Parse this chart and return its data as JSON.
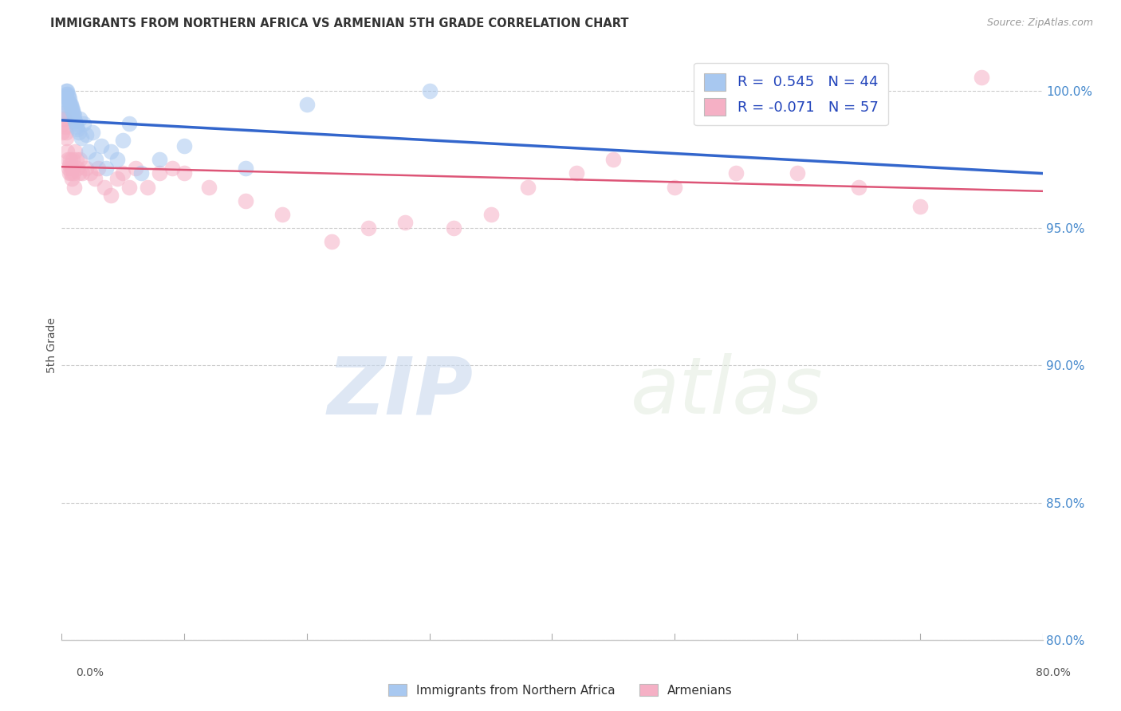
{
  "title": "IMMIGRANTS FROM NORTHERN AFRICA VS ARMENIAN 5TH GRADE CORRELATION CHART",
  "source": "Source: ZipAtlas.com",
  "ylabel": "5th Grade",
  "x_min": 0.0,
  "x_max": 80.0,
  "y_min": 80.0,
  "y_max": 101.5,
  "legend_blue_R": "R =  0.545",
  "legend_blue_N": "N = 44",
  "legend_pink_R": "R = -0.071",
  "legend_pink_N": "N = 57",
  "blue_color": "#a8c8f0",
  "pink_color": "#f5b0c5",
  "blue_line_color": "#3366cc",
  "pink_line_color": "#dd5577",
  "legend_text_color": "#2244bb",
  "blue_scatter_x": [
    0.1,
    0.15,
    0.2,
    0.25,
    0.3,
    0.35,
    0.4,
    0.45,
    0.5,
    0.55,
    0.6,
    0.65,
    0.7,
    0.75,
    0.8,
    0.85,
    0.9,
    0.95,
    1.0,
    1.05,
    1.1,
    1.15,
    1.2,
    1.3,
    1.4,
    1.5,
    1.6,
    1.8,
    2.0,
    2.2,
    2.5,
    2.8,
    3.2,
    3.6,
    4.0,
    4.5,
    5.0,
    5.5,
    6.5,
    8.0,
    10.0,
    15.0,
    20.0,
    30.0
  ],
  "blue_scatter_y": [
    99.2,
    99.5,
    99.6,
    99.7,
    99.8,
    99.9,
    100.0,
    100.0,
    99.9,
    99.8,
    99.7,
    99.6,
    99.5,
    99.5,
    99.4,
    99.3,
    99.3,
    99.2,
    99.1,
    99.0,
    98.9,
    98.8,
    98.7,
    98.6,
    98.5,
    99.0,
    98.3,
    98.8,
    98.4,
    97.8,
    98.5,
    97.5,
    98.0,
    97.2,
    97.8,
    97.5,
    98.2,
    98.8,
    97.0,
    97.5,
    98.0,
    97.2,
    99.5,
    100.0
  ],
  "pink_scatter_x": [
    0.05,
    0.1,
    0.15,
    0.2,
    0.25,
    0.3,
    0.35,
    0.4,
    0.45,
    0.5,
    0.55,
    0.6,
    0.65,
    0.7,
    0.75,
    0.8,
    0.85,
    0.9,
    0.95,
    1.0,
    1.1,
    1.2,
    1.3,
    1.4,
    1.5,
    1.7,
    2.0,
    2.3,
    2.7,
    3.0,
    3.5,
    4.0,
    4.5,
    5.0,
    5.5,
    6.0,
    7.0,
    8.0,
    9.0,
    10.0,
    12.0,
    15.0,
    18.0,
    22.0,
    25.0,
    28.0,
    32.0,
    35.0,
    38.0,
    42.0,
    45.0,
    50.0,
    55.0,
    60.0,
    65.0,
    70.0,
    75.0
  ],
  "pink_scatter_y": [
    98.5,
    98.8,
    99.0,
    99.2,
    99.0,
    98.7,
    98.5,
    98.3,
    97.8,
    97.5,
    97.2,
    97.0,
    97.3,
    97.5,
    97.0,
    96.8,
    97.2,
    97.5,
    97.0,
    96.5,
    97.8,
    97.5,
    97.2,
    97.0,
    97.5,
    97.0,
    97.2,
    97.0,
    96.8,
    97.2,
    96.5,
    96.2,
    96.8,
    97.0,
    96.5,
    97.2,
    96.5,
    97.0,
    97.2,
    97.0,
    96.5,
    96.0,
    95.5,
    94.5,
    95.0,
    95.2,
    95.0,
    95.5,
    96.5,
    97.0,
    97.5,
    96.5,
    97.0,
    97.0,
    96.5,
    95.8,
    100.5
  ],
  "watermark_zip": "ZIP",
  "watermark_atlas": "atlas",
  "background_color": "#ffffff",
  "grid_color": "#cccccc",
  "grid_y_vals": [
    100.0,
    95.0,
    90.0,
    85.0,
    80.0
  ],
  "y_right_labels": [
    "100.0%",
    "95.0%",
    "90.0%",
    "85.0%",
    "80.0%"
  ],
  "x_tick_minor": [
    0,
    10,
    20,
    30,
    40,
    50,
    60,
    70,
    80
  ],
  "right_label_color": "#4488cc"
}
